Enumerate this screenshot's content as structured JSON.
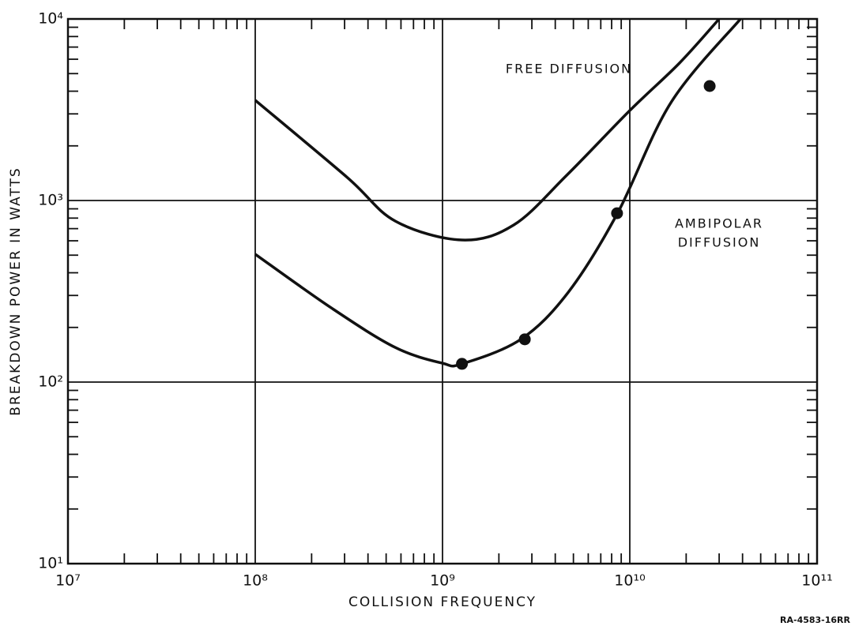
{
  "chart_data": {
    "type": "line",
    "xlabel": "COLLISION FREQUENCY",
    "ylabel": "BREAKDOWN POWER IN WATTS",
    "xlog": true,
    "ylog": true,
    "grid": true,
    "xlim": [
      10000000,
      100000000000
    ],
    "ylim": [
      10,
      10000
    ],
    "xticks": [
      {
        "value": 10000000,
        "label": "10⁷"
      },
      {
        "value": 100000000,
        "label": "10⁸"
      },
      {
        "value": 1000000000,
        "label": "10⁹"
      },
      {
        "value": 10000000000,
        "label": "10¹⁰"
      },
      {
        "value": 100000000000,
        "label": "10¹¹"
      }
    ],
    "yticks": [
      {
        "value": 10,
        "label": "10¹"
      },
      {
        "value": 100,
        "label": "10²"
      },
      {
        "value": 1000,
        "label": "10³"
      },
      {
        "value": 10000,
        "label": "10⁴"
      }
    ],
    "series": [
      {
        "color": "#111111",
        "mode": "line",
        "x": [
          100000000,
          310000000,
          560000000,
          1270000000,
          2400000000,
          4600000000,
          10000000000,
          18400000000,
          30000000000
        ],
        "values": [
          3565,
          1340,
          770,
          606,
          733,
          1376,
          3130,
          5710,
          10000
        ]
      },
      {
        "color": "#111111",
        "mode": "line",
        "x": [
          100000000,
          255000000,
          560000000,
          1000000000,
          1270000000,
          2620000000,
          4700000000,
          8600000000,
          16600000000,
          39000000000
        ],
        "values": [
          506,
          256,
          155,
          127,
          126,
          172,
          313,
          851,
          3467,
          10000
        ]
      },
      {
        "color": "#111111",
        "mode": "markers",
        "x": [
          1270000000,
          2750000000,
          8550000000,
          26700000000
        ],
        "values": [
          126,
          172,
          851,
          4270
        ]
      }
    ],
    "annotations": [
      {
        "text": "FREE DIFFUSION"
      },
      {
        "lines": [
          "AMBIPOLAR",
          "DIFFUSION"
        ]
      }
    ],
    "note": "RA-4583-16RR"
  }
}
